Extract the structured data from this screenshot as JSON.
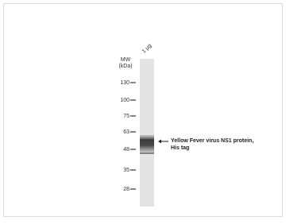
{
  "lane_label": "1 µg",
  "mw_label": {
    "line1": "MW",
    "line2": "(kDa)"
  },
  "markers": [
    "130",
    "100",
    "75",
    "63",
    "48",
    "35",
    "28"
  ],
  "annotation": {
    "line1": "Yellow Fever virus NS1 protein,",
    "line2": "His tag"
  }
}
